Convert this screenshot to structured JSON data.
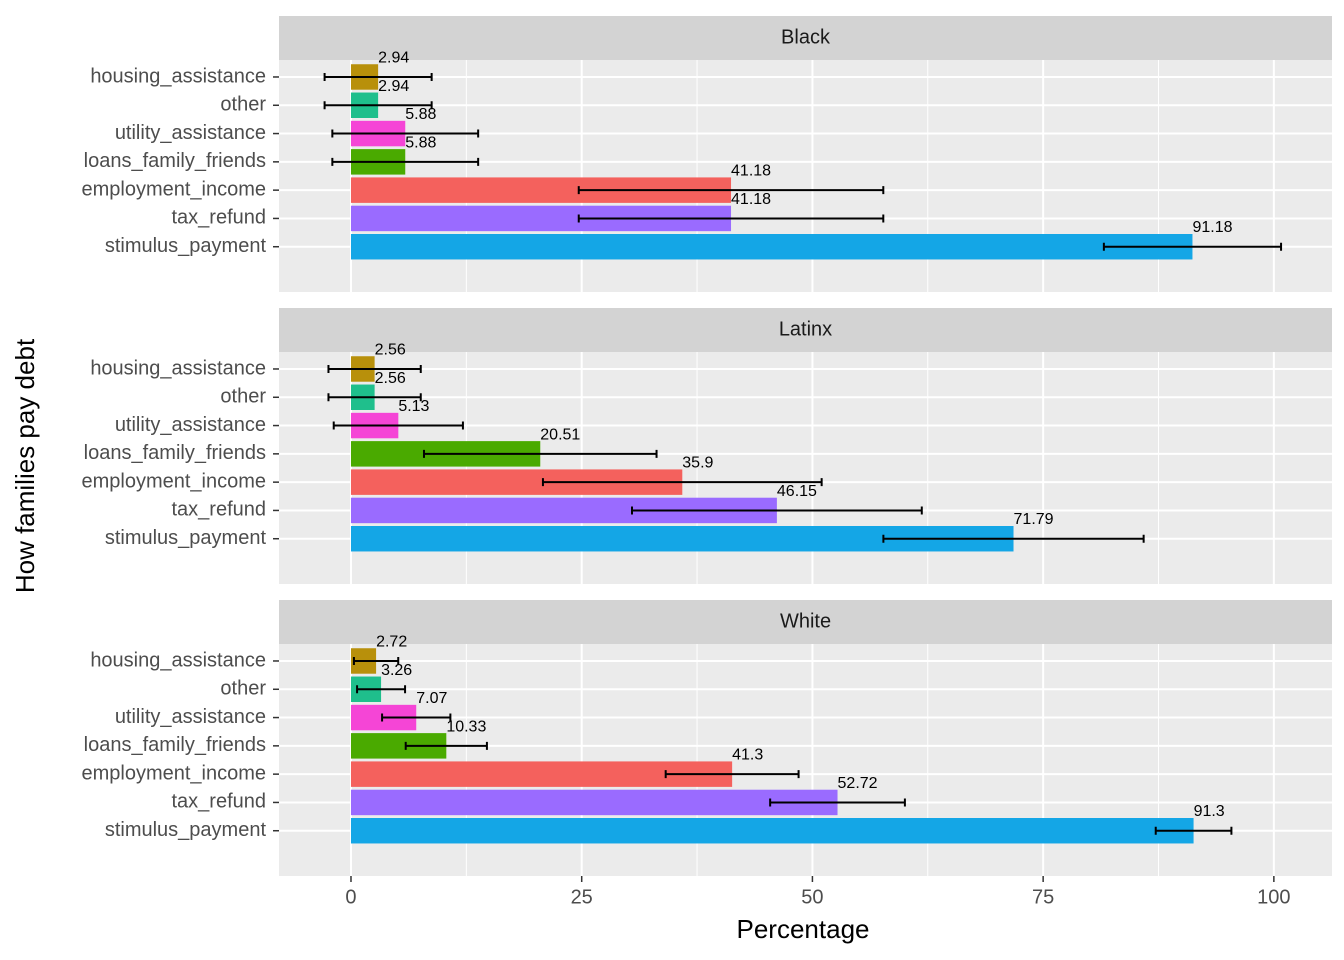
{
  "chart_data": {
    "type": "bar",
    "orientation": "horizontal",
    "x_label": "Percentage",
    "y_label": "How families pay debt",
    "categories": [
      "housing_assistance",
      "other",
      "utility_assistance",
      "loans_family_friends",
      "employment_income",
      "tax_refund",
      "stimulus_payment"
    ],
    "colors": [
      "#b8900b",
      "#1fbf8c",
      "#f545d6",
      "#4aaa00",
      "#f4615d",
      "#9a6bff",
      "#14a6e6"
    ],
    "xlim": [
      -7.8,
      106.3
    ],
    "xticks": [
      0,
      25,
      50,
      75,
      100
    ],
    "grid": true,
    "facets": [
      {
        "title": "Black",
        "values": [
          2.94,
          2.94,
          5.88,
          5.88,
          41.18,
          41.18,
          91.18
        ],
        "errors": [
          5.8,
          5.8,
          7.9,
          7.9,
          16.5,
          16.5,
          9.6
        ]
      },
      {
        "title": "Latinx",
        "values": [
          2.56,
          2.56,
          5.13,
          20.51,
          35.9,
          46.15,
          71.79
        ],
        "errors": [
          5.0,
          5.0,
          7.0,
          12.6,
          15.1,
          15.7,
          14.1
        ]
      },
      {
        "title": "White",
        "values": [
          2.72,
          3.26,
          7.07,
          10.33,
          41.3,
          52.72,
          91.3
        ],
        "errors": [
          2.4,
          2.6,
          3.7,
          4.4,
          7.2,
          7.3,
          4.1
        ]
      }
    ]
  }
}
